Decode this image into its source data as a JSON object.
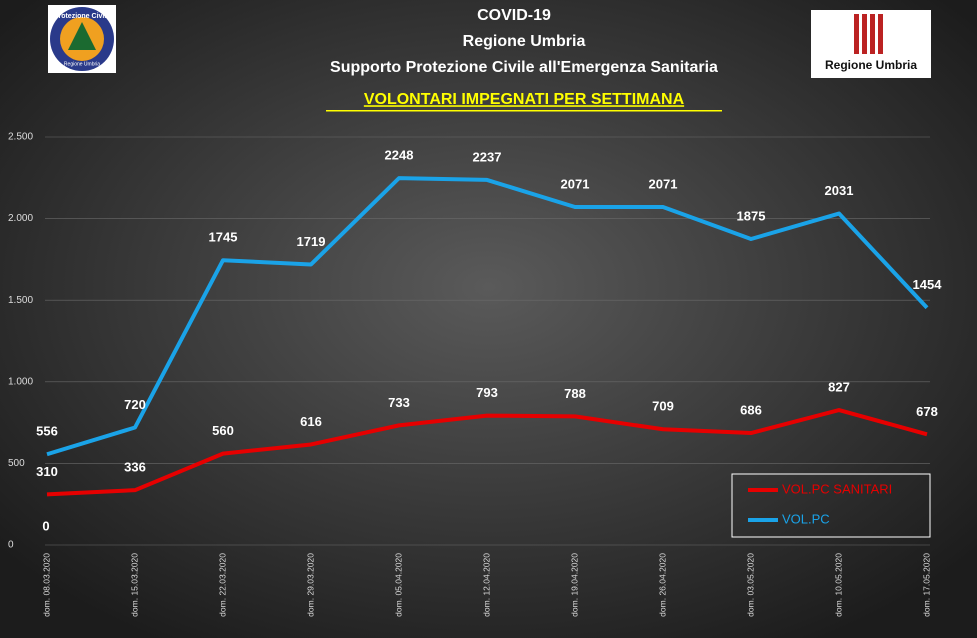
{
  "logos": {
    "left": [
      "Protezione Civile",
      "Regione Umbria"
    ],
    "right": "Regione Umbria"
  },
  "chart_data": {
    "type": "line",
    "title": "COVID-19",
    "subtitles": [
      "Regione Umbria",
      "Supporto  Protezione  Civile all'Emergenza  Sanitaria"
    ],
    "heading": "VOLONTARI  IMPEGNATI  PER  SETTIMANA",
    "categories": [
      "dom. 08.03.2020",
      "dom. 15.03.2020",
      "dom. 22.03.2020",
      "dom. 29.03.2020",
      "dom. 05.04.2020",
      "dom. 12.04.2020",
      "dom. 19.04.2020",
      "dom. 26.04.2020",
      "dom. 03.05.2020",
      "dom. 10.05.2020",
      "dom. 17.05.2020"
    ],
    "series": [
      {
        "name": "VOL.PC SANITARI",
        "color": "#e60000",
        "values": [
          310,
          336,
          560,
          616,
          733,
          793,
          788,
          709,
          686,
          827,
          678
        ]
      },
      {
        "name": "VOL.PC",
        "color": "#1aa3e8",
        "values": [
          556,
          720,
          1745,
          1719,
          2248,
          2237,
          2071,
          2071,
          1875,
          2031,
          1454
        ]
      }
    ],
    "annotations": [
      "0"
    ],
    "ylim": [
      0,
      2500
    ],
    "yticks": [
      0,
      500,
      {
        "value": 1000,
        "label": "1.000"
      },
      {
        "value": 1500,
        "label": "1.500"
      },
      {
        "value": 2000,
        "label": "2.000"
      },
      {
        "value": 2500,
        "label": "2.500"
      }
    ],
    "grid": true,
    "legend": "bottom-right"
  }
}
